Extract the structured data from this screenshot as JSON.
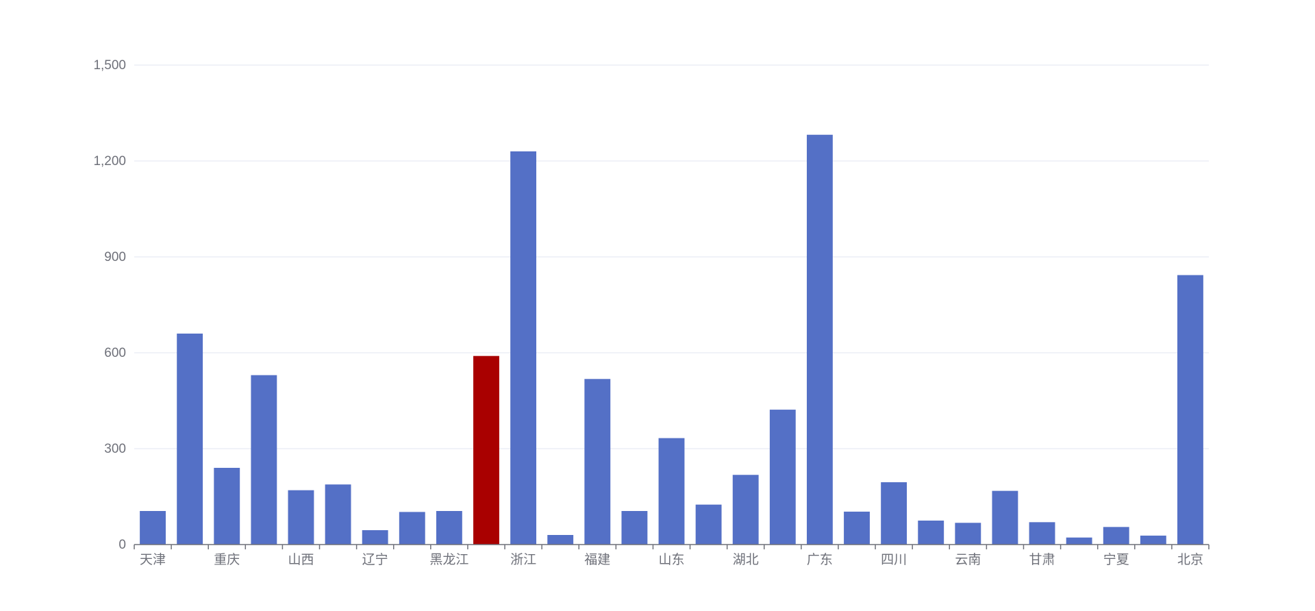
{
  "chart_data": {
    "type": "bar",
    "categories": [
      "天津",
      "",
      "重庆",
      "",
      "山西",
      "",
      "辽宁",
      "",
      "黑龙江",
      "",
      "浙江",
      "",
      "福建",
      "",
      "山东",
      "",
      "湖北",
      "",
      "广东",
      "",
      "四川",
      "",
      "云南",
      "",
      "甘肃",
      "",
      "宁夏",
      "",
      "北京"
    ],
    "values": [
      105,
      660,
      240,
      530,
      170,
      188,
      45,
      102,
      105,
      590,
      1230,
      30,
      518,
      105,
      333,
      125,
      218,
      422,
      1282,
      103,
      195,
      75,
      68,
      168,
      70,
      22,
      55,
      28,
      843
    ],
    "highlight_index": 9,
    "ylim": [
      0,
      1500
    ],
    "yticks": [
      0,
      300,
      600,
      900,
      1200,
      1500
    ],
    "ytick_labels": [
      "0",
      "300",
      "600",
      "900",
      "1,200",
      "1,500"
    ],
    "grid": true,
    "colors": {
      "bar": "#5470c6",
      "highlight": "#a90000",
      "grid": "#e0e6f1",
      "axis": "#6e7079"
    }
  }
}
